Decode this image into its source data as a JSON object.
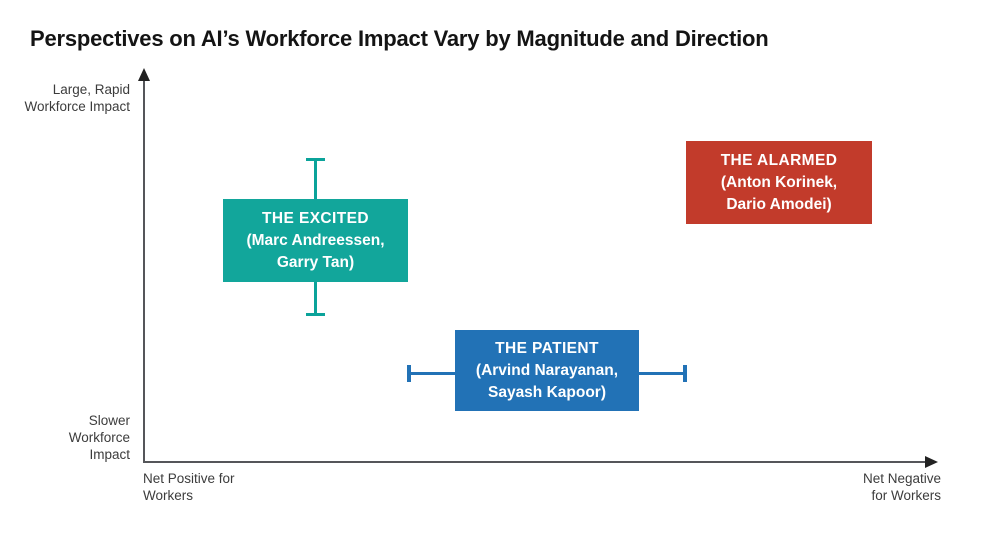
{
  "title": "Perspectives on AI’s Workforce Impact Vary by Magnitude and Direction",
  "axes": {
    "y_top": {
      "line1": "Large, Rapid",
      "line2": "Workforce Impact"
    },
    "y_bottom": {
      "line1": "Slower",
      "line2": "Workforce",
      "line3": "Impact"
    },
    "x_left": {
      "line1": "Net Positive for",
      "line2": "Workers"
    },
    "x_right": {
      "line1": "Net Negative",
      "line2": "for Workers"
    }
  },
  "groups": [
    {
      "label": "THE EXCITED",
      "people_line1": "(Marc Andreessen,",
      "people_line2": "Garry Tan)",
      "color": "#12a69b",
      "error_bar": "vertical"
    },
    {
      "label": "THE PATIENT",
      "people_line1": "(Arvind Narayanan,",
      "people_line2": "Sayash Kapoor)",
      "color": "#2272b6",
      "error_bar": "horizontal"
    },
    {
      "label": "THE ALARMED",
      "people_line1": "(Anton Korinek,",
      "people_line2": "Dario Amodei)",
      "color": "#c23b2b",
      "error_bar": "none"
    }
  ],
  "colors": {
    "excited_teal": "#12a69b",
    "patient_blue": "#2272b6",
    "alarmed_red": "#c23b2b",
    "axis_line": "#55565a",
    "arrowhead": "#222222",
    "label_text": "#3c3c3c",
    "title_text": "#141414",
    "background": "#ffffff"
  },
  "chart_data": {
    "type": "scatter",
    "title": "Perspectives on AI’s Workforce Impact Vary by Magnitude and Direction",
    "xlabel": "Net Positive for Workers (left) to Net Negative for Workers (right)",
    "ylabel": "Slower Workforce Impact (bottom) to Large, Rapid Workforce Impact (top)",
    "x_range": [
      0,
      1
    ],
    "y_range": [
      0,
      1
    ],
    "grid": false,
    "legend": false,
    "points": [
      {
        "label": "THE EXCITED",
        "people": [
          "Marc Andreessen",
          "Garry Tan"
        ],
        "x": 0.22,
        "y": 0.57,
        "y_error_low": 0.19,
        "y_error_high": 0.21,
        "color": "#12a69b"
      },
      {
        "label": "THE PATIENT",
        "people": [
          "Arvind Narayanan",
          "Sayash Kapoor"
        ],
        "x": 0.51,
        "y": 0.24,
        "x_error_low": 0.18,
        "x_error_high": 0.18,
        "color": "#2272b6"
      },
      {
        "label": "THE ALARMED",
        "people": [
          "Anton Korinek",
          "Dario Amodei"
        ],
        "x": 0.8,
        "y": 0.72,
        "color": "#c23b2b"
      }
    ]
  }
}
